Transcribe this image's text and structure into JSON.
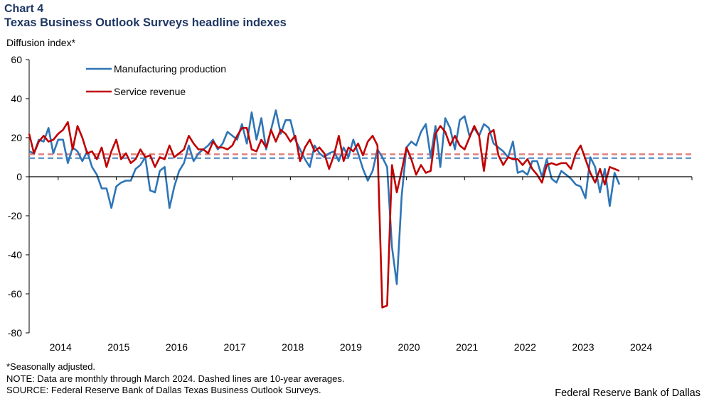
{
  "header": {
    "label": "Chart 4",
    "title": "Texas Business Outlook Surveys headline indexes"
  },
  "footer": {
    "footnote": "*Seasonally adjusted.",
    "note": "NOTE: Data are monthly through March 2024. Dashed lines are 10-year averages.",
    "source": "SOURCE: Federal Reserve Bank of Dallas Texas Business Outlook Surveys.",
    "credit": "Federal Reserve Bank of Dallas"
  },
  "colors": {
    "manufacturing": "#2e75b6",
    "service": "#c00000",
    "avg_manufacturing": "#6a97c9",
    "avg_service": "#e08080"
  },
  "chart_data": {
    "type": "line",
    "title": "Texas Business Outlook Surveys headline indexes",
    "ylabel": "Diffusion index*",
    "xlabel": "",
    "ylim": [
      -80,
      60
    ],
    "yticks": [
      -80,
      -60,
      -40,
      -20,
      0,
      20,
      40,
      60
    ],
    "x_start": "2013-07",
    "x_end": "2024-03",
    "x_axis_domain": [
      0,
      137
    ],
    "year_labels": [
      "2014",
      "2015",
      "2016",
      "2017",
      "2018",
      "2019",
      "2020",
      "2021",
      "2022",
      "2023",
      "2024"
    ],
    "year_label_positions": [
      6.5,
      18.5,
      30.5,
      42.5,
      54.5,
      66.5,
      78.5,
      90.5,
      102.5,
      114.5,
      126.5
    ],
    "legend": {
      "placement": "top-left"
    },
    "series": [
      {
        "name": "Manufacturing production",
        "values": [
          13,
          12,
          19,
          18,
          25,
          12,
          19,
          19,
          7,
          15,
          13,
          8,
          13,
          5,
          1,
          -6,
          -6,
          -16,
          -5,
          -3,
          -2,
          -2,
          4,
          6,
          10,
          -7,
          -8,
          3,
          5,
          -16,
          -5,
          3,
          7,
          16,
          8,
          12,
          14,
          16,
          19,
          14,
          17,
          23,
          21,
          19,
          27,
          17,
          33,
          19,
          30,
          14,
          24,
          34,
          22,
          29,
          29,
          19,
          14,
          9,
          5,
          16,
          12,
          10,
          12,
          13,
          8,
          15,
          10,
          19,
          12,
          4,
          -2,
          3,
          14,
          10,
          5,
          -36,
          -55,
          -10,
          15,
          18,
          16,
          23,
          27,
          10,
          26,
          5,
          30,
          25,
          14,
          29,
          31,
          21,
          25,
          21,
          27,
          25,
          17,
          15,
          13,
          10,
          18,
          2,
          3,
          1,
          8,
          8,
          0,
          9,
          -1,
          -3,
          3,
          1,
          -1,
          -4,
          -5,
          -11,
          10,
          5,
          -8,
          4,
          -15,
          2,
          -4
        ]
      },
      {
        "name": "Service revenue",
        "values": [
          22,
          12,
          18,
          21,
          18,
          19,
          22,
          24,
          28,
          14,
          26,
          20,
          12,
          13,
          9,
          15,
          5,
          13,
          19,
          9,
          12,
          7,
          9,
          14,
          10,
          11,
          5,
          10,
          9,
          16,
          10,
          12,
          14,
          21,
          17,
          14,
          14,
          12,
          18,
          15,
          15,
          14,
          16,
          21,
          25,
          25,
          14,
          13,
          19,
          15,
          24,
          18,
          24,
          22,
          18,
          21,
          8,
          15,
          19,
          13,
          15,
          12,
          4,
          11,
          21,
          8,
          15,
          13,
          17,
          11,
          18,
          21,
          16,
          -67,
          -66,
          6,
          -8,
          3,
          15,
          9,
          1,
          6,
          2,
          3,
          22,
          26,
          23,
          16,
          21,
          16,
          14,
          20,
          26,
          21,
          3,
          22,
          24,
          11,
          6,
          10,
          9,
          9,
          6,
          9,
          4,
          1,
          -3,
          6,
          7,
          6,
          7,
          7,
          4,
          12,
          16,
          9,
          2,
          -3,
          4,
          -4,
          5,
          4,
          3
        ]
      },
      {
        "name": "Manufacturing production 10-year average",
        "style": "dashed",
        "constant": 9.5
      },
      {
        "name": "Service revenue 10-year average",
        "style": "dashed",
        "constant": 11.5
      }
    ]
  }
}
